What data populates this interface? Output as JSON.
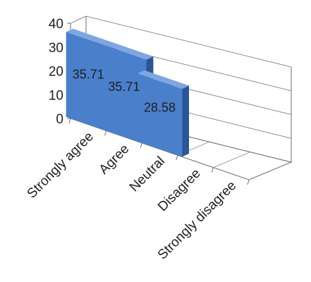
{
  "chart_data": {
    "type": "bar",
    "style": "3d-column",
    "categories": [
      "Strongly agree",
      "Agree",
      "Neutral",
      "Disagree",
      "Strongly disagree"
    ],
    "values": [
      35.71,
      35.71,
      28.58,
      null,
      null
    ],
    "data_labels": [
      "35.71",
      "35.71",
      "28.58",
      "",
      ""
    ],
    "ylim": [
      0,
      40
    ],
    "yticks": [
      "0",
      "10",
      "20",
      "30",
      "40"
    ],
    "grid": true,
    "legend": "none",
    "colors": {
      "bar_front": "#4a7fcc",
      "bar_side": "#2c5595",
      "bar_top": "#7ea6e0",
      "gridline": "#8c8c8c",
      "axis": "#6f6f6f"
    }
  }
}
